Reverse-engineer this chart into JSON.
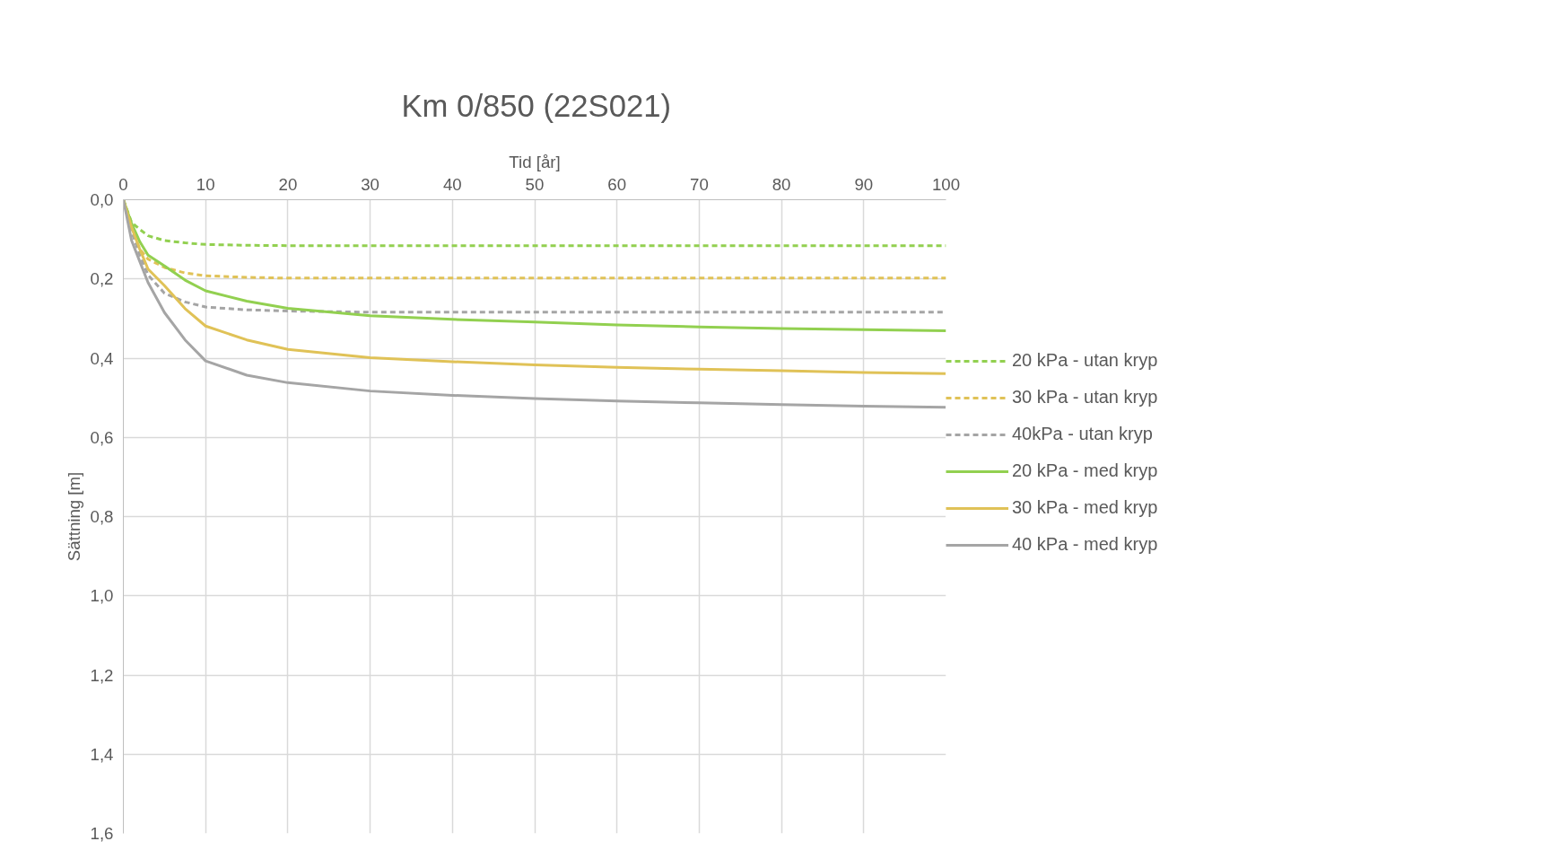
{
  "chart_data": {
    "type": "line",
    "title": "Km 0/850 (22S021)",
    "xlabel": "Tid [år]",
    "ylabel": "Sättning [m]",
    "x": [
      0,
      1,
      2,
      3,
      5,
      7.5,
      10,
      15,
      20,
      30,
      40,
      50,
      60,
      70,
      80,
      90,
      100
    ],
    "series": [
      {
        "name": "20 kPa - utan kryp",
        "color": "#92d050",
        "line_style": "dashed",
        "values": [
          0,
          0.057,
          0.075,
          0.091,
          0.103,
          0.109,
          0.113,
          0.115,
          0.116,
          0.116,
          0.116,
          0.116,
          0.116,
          0.116,
          0.116,
          0.116,
          0.116
        ]
      },
      {
        "name": "30 kPa - utan kryp",
        "color": "#e0c257",
        "line_style": "dashed",
        "values": [
          0,
          0.07,
          0.125,
          0.15,
          0.171,
          0.185,
          0.192,
          0.196,
          0.198,
          0.198,
          0.198,
          0.198,
          0.198,
          0.198,
          0.198,
          0.198,
          0.198
        ]
      },
      {
        "name": "40kPa - utan kryp",
        "color": "#a5a5a5",
        "line_style": "dashed",
        "values": [
          0,
          0.08,
          0.14,
          0.19,
          0.236,
          0.258,
          0.271,
          0.278,
          0.281,
          0.284,
          0.284,
          0.284,
          0.284,
          0.284,
          0.284,
          0.284,
          0.284
        ]
      },
      {
        "name": "20 kPa - med kryp",
        "color": "#92d050",
        "line_style": "solid",
        "values": [
          0,
          0.06,
          0.106,
          0.14,
          0.167,
          0.203,
          0.23,
          0.256,
          0.274,
          0.293,
          0.302,
          0.309,
          0.316,
          0.321,
          0.325,
          0.328,
          0.331
        ]
      },
      {
        "name": "30 kPa - med kryp",
        "color": "#e0c257",
        "line_style": "solid",
        "values": [
          0,
          0.07,
          0.125,
          0.175,
          0.217,
          0.275,
          0.319,
          0.354,
          0.378,
          0.399,
          0.409,
          0.417,
          0.423,
          0.428,
          0.432,
          0.436,
          0.439
        ]
      },
      {
        "name": "40 kPa - med kryp",
        "color": "#a5a5a5",
        "line_style": "solid",
        "values": [
          0,
          0.103,
          0.156,
          0.209,
          0.285,
          0.354,
          0.407,
          0.443,
          0.462,
          0.483,
          0.494,
          0.502,
          0.508,
          0.513,
          0.517,
          0.521,
          0.524
        ]
      }
    ],
    "xlim": [
      0,
      100
    ],
    "xticks": [
      0,
      10,
      20,
      30,
      40,
      50,
      60,
      70,
      80,
      90,
      100
    ],
    "ylim": [
      1.6,
      0
    ],
    "yticks": [
      {
        "value": 0,
        "label": "0,0"
      },
      {
        "value": 0.2,
        "label": "0,2"
      },
      {
        "value": 0.4,
        "label": "0,4"
      },
      {
        "value": 0.6,
        "label": "0,6"
      },
      {
        "value": 0.8,
        "label": "0,8"
      },
      {
        "value": 1.0,
        "label": "1,0"
      },
      {
        "value": 1.2,
        "label": "1,2"
      },
      {
        "value": 1.4,
        "label": "1,4"
      },
      {
        "value": 1.6,
        "label": "1,6"
      }
    ],
    "grid": true,
    "legend": "right"
  }
}
